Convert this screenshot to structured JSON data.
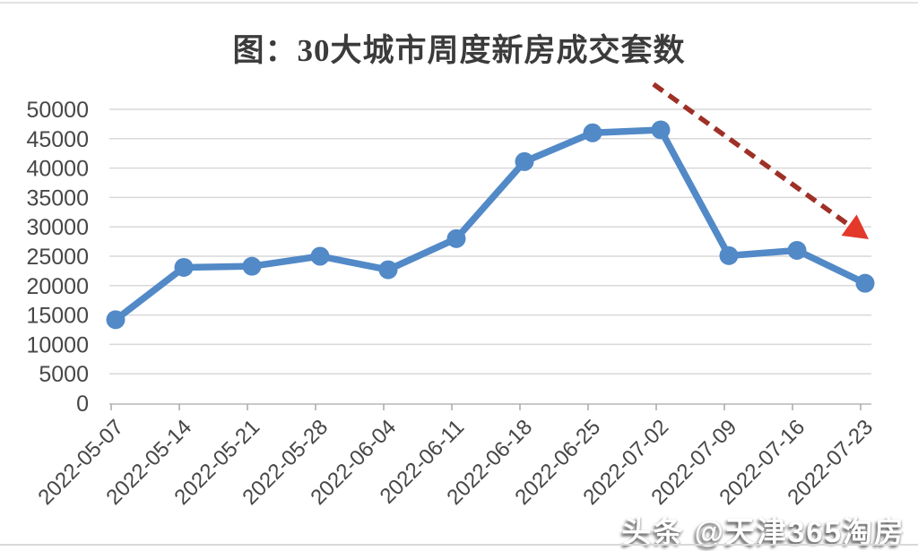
{
  "title": "图：30大城市周度新房成交套数",
  "watermark": {
    "text": "头条 @天津365淘房"
  },
  "chart_data": {
    "type": "line",
    "title": "图：30大城市周度新房成交套数",
    "categories": [
      "2022-05-07",
      "2022-05-14",
      "2022-05-21",
      "2022-05-28",
      "2022-06-04",
      "2022-06-11",
      "2022-06-18",
      "2022-06-25",
      "2022-07-02",
      "2022-07-09",
      "2022-07-16",
      "2022-07-23"
    ],
    "values": [
      14200,
      23100,
      23300,
      25000,
      22700,
      28000,
      41100,
      46000,
      46500,
      25100,
      26000,
      20400
    ],
    "xlabel": "",
    "ylabel": "",
    "ylim": [
      0,
      50000
    ],
    "yticks": [
      0,
      5000,
      10000,
      15000,
      20000,
      25000,
      30000,
      35000,
      40000,
      45000,
      50000
    ],
    "grid": "horizontal",
    "legend": "none",
    "marker": "circle",
    "x_tick_label_rotation_deg": -45,
    "annotation": {
      "type": "trend-arrow",
      "direction": "down-right",
      "style": "dashed",
      "meaning": "decline after 2022-07-02 peak"
    }
  },
  "colors": {
    "background": "#ffffff",
    "gridline": "#d9d9d9",
    "axis_line": "#c9c9c9",
    "tick": "#a8a8a8",
    "axis_text": "#474747",
    "title_text": "#3b3b3b",
    "series_line": "#5289c7",
    "arrow_dash": "#9e3026",
    "arrow_head": "#e2392b",
    "watermark_text": "#ffffff"
  }
}
